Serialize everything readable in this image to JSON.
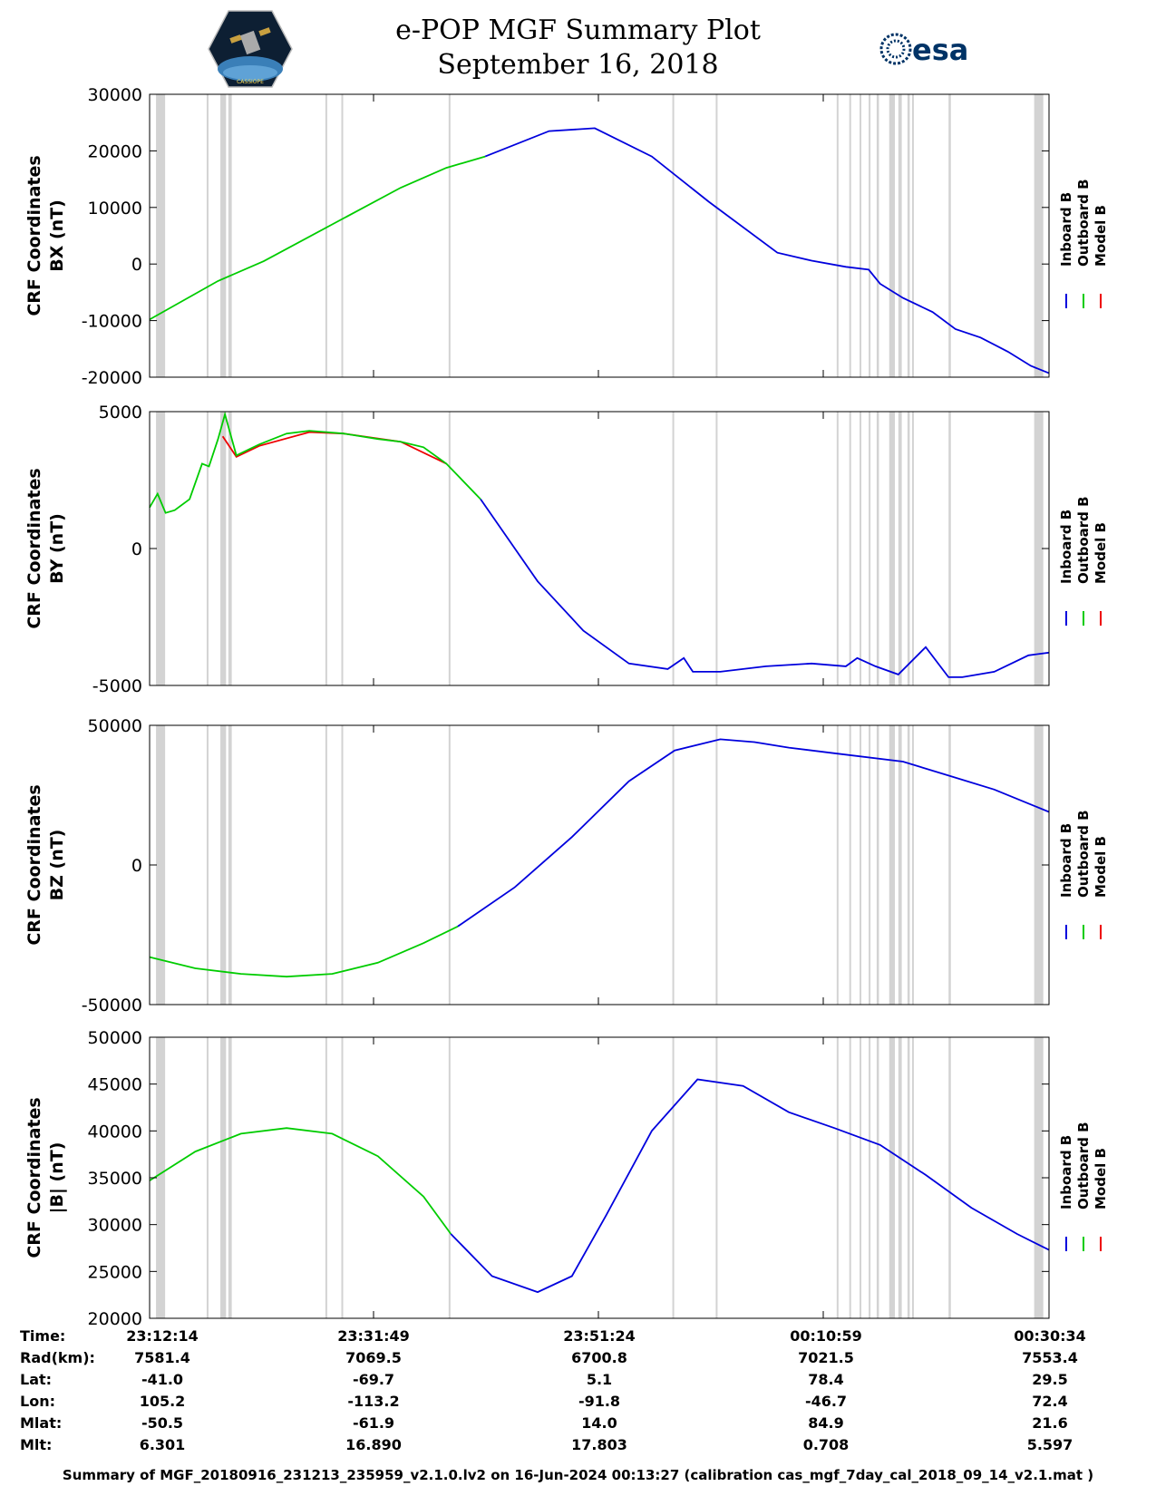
{
  "header": {
    "title": "e-POP MGF Summary Plot",
    "date": "September 16, 2018",
    "logo_left_text": "CASSIOPE",
    "logo_right_text": "esa"
  },
  "colors": {
    "inboard": "#0000dd",
    "outboard": "#00cc00",
    "model": "#ee0000",
    "gap": "#d3d3d3",
    "axis": "#000000"
  },
  "legend": {
    "items": [
      "Inboard B",
      "Outboard B",
      "Model B"
    ]
  },
  "chart_data": [
    {
      "type": "line",
      "ylabel": [
        "CRF Coordinates",
        "BX (nT)"
      ],
      "xlim": [
        0,
        3940
      ],
      "ylim": [
        -20000,
        30000
      ],
      "yticks": [
        -20000,
        -10000,
        0,
        10000,
        20000,
        30000
      ],
      "ytick_labels": [
        "-20000",
        "-10000",
        "0",
        "10000",
        "20000",
        "30000"
      ],
      "series": [
        {
          "name": "Outboard B",
          "color": "outboard",
          "x": [
            0,
            300,
            500,
            800,
            1100,
            1300,
            1470
          ],
          "y": [
            -9800,
            -3000,
            500,
            7000,
            13500,
            17000,
            19000
          ]
        },
        {
          "name": "Inboard B",
          "color": "inboard",
          "x": [
            1470,
            1750,
            1950,
            2200,
            2450,
            2750,
            2900,
            3050,
            3150,
            3200,
            3300,
            3430,
            3530,
            3640,
            3760,
            3860,
            3940
          ],
          "y": [
            19000,
            23500,
            24000,
            19000,
            11000,
            2000,
            600,
            -500,
            -1000,
            -3500,
            -6000,
            -8500,
            -11500,
            -13000,
            -15500,
            -18000,
            -19300
          ]
        }
      ]
    },
    {
      "type": "line",
      "ylabel": [
        "CRF Coordinates",
        "BY (nT)"
      ],
      "xlim": [
        0,
        3940
      ],
      "ylim": [
        -5000,
        5000
      ],
      "yticks": [
        -5000,
        0,
        5000
      ],
      "ytick_labels": [
        "-5000",
        "0",
        "5000"
      ],
      "series": [
        {
          "name": "Model B",
          "color": "model",
          "x": [
            320,
            380,
            480,
            700,
            850,
            1100,
            1300
          ],
          "y": [
            4100,
            3350,
            3750,
            4250,
            4200,
            3900,
            3100
          ]
        },
        {
          "name": "Outboard B",
          "color": "outboard",
          "x": [
            0,
            35,
            70,
            110,
            175,
            230,
            260,
            300,
            330,
            380,
            480,
            600,
            700,
            850,
            1000,
            1100,
            1200,
            1300,
            1450
          ],
          "y": [
            1500,
            2000,
            1300,
            1400,
            1800,
            3100,
            3000,
            4000,
            4900,
            3400,
            3800,
            4200,
            4300,
            4200,
            4000,
            3900,
            3700,
            3100,
            1800
          ]
        },
        {
          "name": "Inboard B",
          "color": "inboard",
          "x": [
            1450,
            1700,
            1900,
            2100,
            2270,
            2340,
            2380,
            2500,
            2700,
            2900,
            3050,
            3100,
            3180,
            3280,
            3400,
            3500,
            3560,
            3700,
            3850,
            3940
          ],
          "y": [
            1800,
            -1200,
            -3000,
            -4200,
            -4400,
            -4000,
            -4500,
            -4500,
            -4300,
            -4200,
            -4300,
            -4000,
            -4300,
            -4600,
            -3600,
            -4700,
            -4700,
            -4500,
            -3900,
            -3800
          ]
        }
      ]
    },
    {
      "type": "line",
      "ylabel": [
        "CRF Coordinates",
        "BZ (nT)"
      ],
      "xlim": [
        0,
        3940
      ],
      "ylim": [
        -50000,
        50000
      ],
      "yticks": [
        -50000,
        0,
        50000
      ],
      "ytick_labels": [
        "-50000",
        "0",
        "50000"
      ],
      "series": [
        {
          "name": "Outboard B",
          "color": "outboard",
          "x": [
            0,
            200,
            400,
            600,
            800,
            1000,
            1200,
            1350
          ],
          "y": [
            -33000,
            -37000,
            -39000,
            -40000,
            -39000,
            -35000,
            -28000,
            -22000
          ]
        },
        {
          "name": "Inboard B",
          "color": "inboard",
          "x": [
            1350,
            1600,
            1850,
            2100,
            2300,
            2500,
            2650,
            2800,
            3000,
            3300,
            3500,
            3700,
            3940
          ],
          "y": [
            -22000,
            -8000,
            10000,
            30000,
            41000,
            45000,
            44000,
            42000,
            40000,
            37000,
            32000,
            27000,
            19000
          ]
        }
      ]
    },
    {
      "type": "line",
      "ylabel": [
        "CRF Coordinates",
        "|B| (nT)"
      ],
      "xlim": [
        0,
        3940
      ],
      "ylim": [
        20000,
        50000
      ],
      "yticks": [
        20000,
        25000,
        30000,
        35000,
        40000,
        45000,
        50000
      ],
      "ytick_labels": [
        "20000",
        "25000",
        "30000",
        "35000",
        "40000",
        "45000",
        "50000"
      ],
      "series": [
        {
          "name": "Outboard B",
          "color": "outboard",
          "x": [
            0,
            200,
            400,
            600,
            800,
            1000,
            1200,
            1320
          ],
          "y": [
            34700,
            37800,
            39700,
            40300,
            39700,
            37300,
            33000,
            29000
          ]
        },
        {
          "name": "Inboard B",
          "color": "inboard",
          "x": [
            1320,
            1500,
            1700,
            1850,
            2000,
            2200,
            2400,
            2600,
            2800,
            3000,
            3200,
            3400,
            3600,
            3800,
            3940
          ],
          "y": [
            29000,
            24500,
            22800,
            24500,
            31000,
            40000,
            45500,
            44800,
            42000,
            40300,
            38500,
            35300,
            31800,
            29000,
            27300
          ]
        }
      ]
    }
  ],
  "gap_bands": [
    [
      28,
      68
    ],
    [
      250,
      255
    ],
    [
      310,
      335
    ],
    [
      345,
      360
    ],
    [
      770,
      775
    ],
    [
      840,
      845
    ],
    [
      1310,
      1315
    ],
    [
      2290,
      2295
    ],
    [
      2480,
      2485
    ],
    [
      3010,
      3015
    ],
    [
      3065,
      3070
    ],
    [
      3110,
      3115
    ],
    [
      3150,
      3155
    ],
    [
      3185,
      3195
    ],
    [
      3240,
      3265
    ],
    [
      3280,
      3295
    ],
    [
      3320,
      3330
    ],
    [
      3340,
      3345
    ],
    [
      3500,
      3510
    ],
    [
      3875,
      3915
    ]
  ],
  "info": {
    "times": [
      "23:12:14",
      "23:31:49",
      "23:51:24",
      "00:10:59",
      "00:30:34"
    ],
    "rows": [
      {
        "label": "Rad(km):",
        "values": [
          "7581.4",
          "7069.5",
          "6700.8",
          "7021.5",
          "7553.4"
        ]
      },
      {
        "label": "Lat:",
        "values": [
          "-41.0",
          "-69.7",
          "5.1",
          "78.4",
          "29.5"
        ]
      },
      {
        "label": "Lon:",
        "values": [
          "105.2",
          "-113.2",
          "-91.8",
          "-46.7",
          "72.4"
        ]
      },
      {
        "label": "Mlat:",
        "values": [
          "-50.5",
          "-61.9",
          "14.0",
          "84.9",
          "21.6"
        ]
      },
      {
        "label": "Mlt:",
        "values": [
          "6.301",
          "16.890",
          "17.803",
          "0.708",
          "5.597"
        ]
      }
    ],
    "time_label": "Time:"
  },
  "footer": "Summary of MGF_20180916_231213_235959_v2.1.0.lv2 on 16-Jun-2024 00:13:27 (calibration cas_mgf_7day_cal_2018_09_14_v2.1.mat )"
}
